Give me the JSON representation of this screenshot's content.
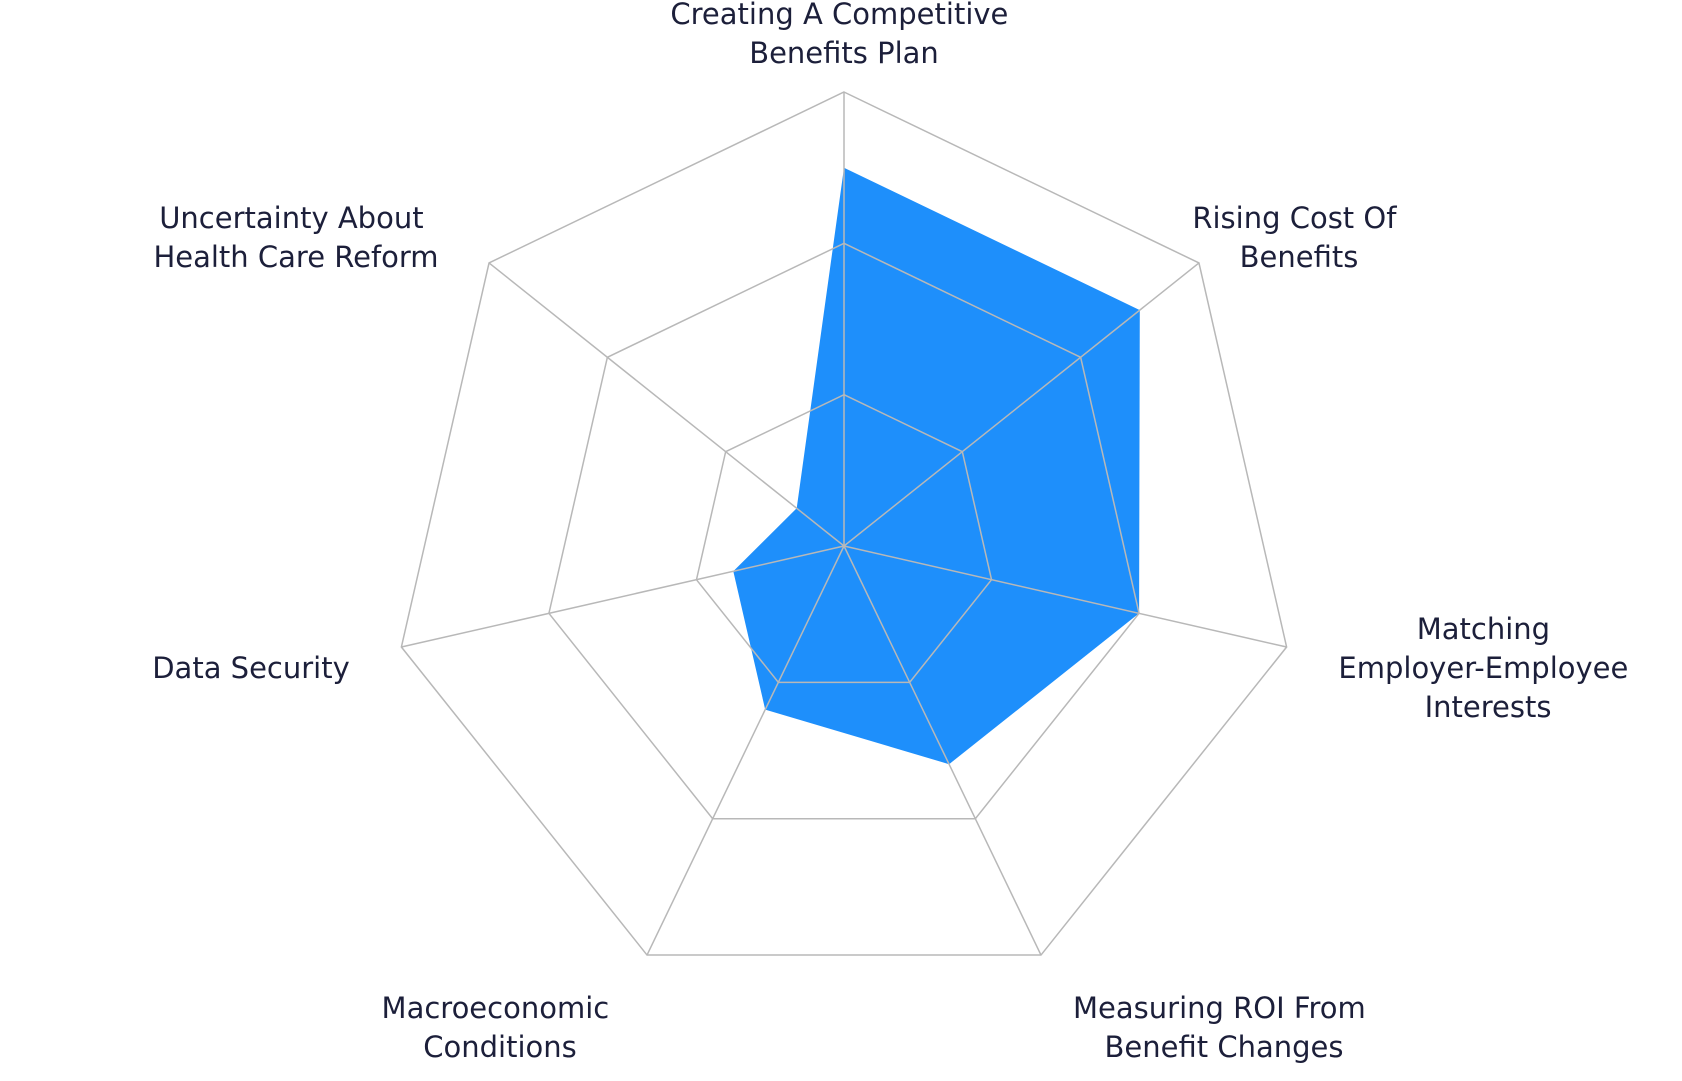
{
  "chart_data": {
    "type": "radar",
    "categories": [
      "Creating A Competitive Benefits Plan",
      "Rising Cost Of Benefits",
      "Matching Employer-Employee Interests",
      "Measuring ROI From Benefit Changes",
      "Macroeconomic Conditions",
      "Data Security",
      "Uncertainty About Health Care Reform"
    ],
    "values": [
      2.5,
      2.5,
      2.0,
      1.6,
      1.2,
      0.75,
      0.4
    ],
    "color": "#1e8ffb",
    "rlim": [
      0,
      3
    ],
    "rticks": [
      1,
      2,
      3
    ],
    "grid": true
  }
}
